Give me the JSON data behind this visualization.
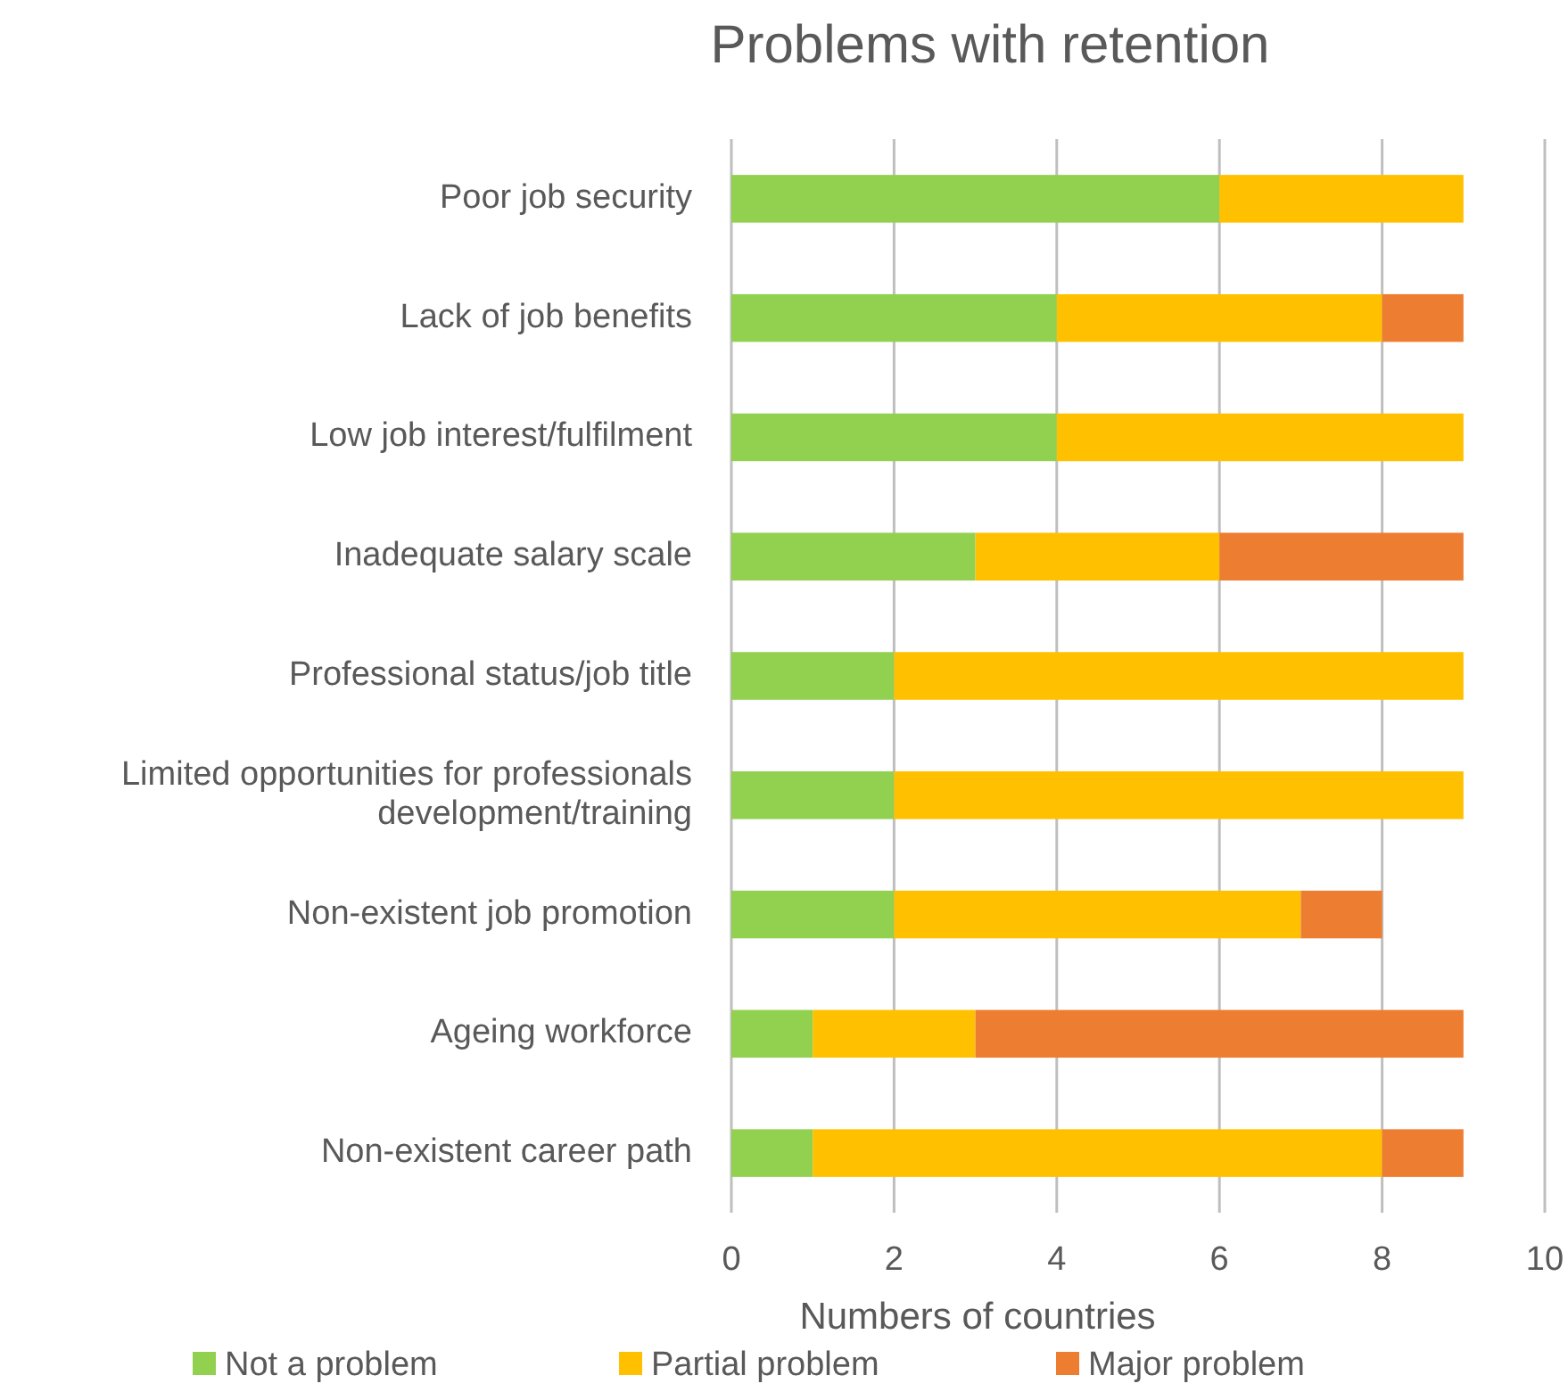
{
  "chart_data": {
    "type": "bar",
    "orientation": "horizontal",
    "stacked": true,
    "title": "Problems with retention",
    "xlabel": "Numbers of countries",
    "categories": [
      "Poor job security",
      "Lack of job benefits",
      "Low job interest/fulfilment",
      "Inadequate salary scale",
      "Professional status/job title",
      "Limited opportunities for professionals\ndevelopment/training",
      "Non-existent job promotion",
      "Ageing workforce",
      "Non-existent career path"
    ],
    "series": [
      {
        "name": "Not a problem",
        "color": "#92d050",
        "values": [
          6,
          4,
          4,
          3,
          2,
          2,
          2,
          1,
          1
        ]
      },
      {
        "name": "Partial problem",
        "color": "#ffc000",
        "values": [
          3,
          4,
          5,
          3,
          7,
          7,
          5,
          2,
          7
        ]
      },
      {
        "name": "Major problem",
        "color": "#ed7d31",
        "values": [
          0,
          1,
          0,
          3,
          0,
          0,
          1,
          6,
          1
        ]
      }
    ],
    "xlim": [
      0,
      10
    ],
    "xticks": [
      0,
      2,
      4,
      6,
      8,
      10
    ],
    "grid": "x",
    "legend": "bottom"
  }
}
